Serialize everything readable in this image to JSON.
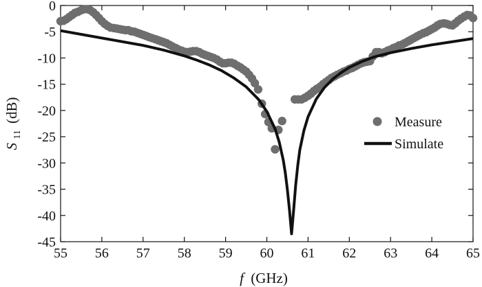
{
  "chart_data": {
    "type": "line",
    "title": "",
    "xlabel": {
      "symbol": "f",
      "unit": "(GHz)"
    },
    "ylabel": {
      "symbol": "S",
      "subscript": "11",
      "unit": "(dB)"
    },
    "xlim": [
      55,
      65
    ],
    "ylim": [
      -45,
      0
    ],
    "grid": false,
    "legend_position": "right",
    "x_ticks": [
      "55",
      "56",
      "57",
      "58",
      "59",
      "60",
      "61",
      "62",
      "63",
      "64",
      "65"
    ],
    "y_ticks": [
      "0",
      "-5",
      "-10",
      "-15",
      "-20",
      "-25",
      "-30",
      "-35",
      "-40",
      "-45"
    ],
    "series": [
      {
        "name": "Measure",
        "style": "markers",
        "color": "#6e6e6e",
        "points": [
          [
            55.0,
            -3.0
          ],
          [
            55.07,
            -2.9
          ],
          [
            55.14,
            -2.6
          ],
          [
            55.21,
            -2.2
          ],
          [
            55.28,
            -1.8
          ],
          [
            55.35,
            -1.4
          ],
          [
            55.42,
            -1.2
          ],
          [
            55.5,
            -0.9
          ],
          [
            55.58,
            -0.7
          ],
          [
            55.65,
            -0.7
          ],
          [
            55.72,
            -0.9
          ],
          [
            55.79,
            -1.3
          ],
          [
            55.86,
            -1.8
          ],
          [
            55.93,
            -2.4
          ],
          [
            56.0,
            -3.0
          ],
          [
            56.07,
            -3.5
          ],
          [
            56.14,
            -3.9
          ],
          [
            56.21,
            -4.2
          ],
          [
            56.29,
            -4.3
          ],
          [
            56.36,
            -4.4
          ],
          [
            56.43,
            -4.5
          ],
          [
            56.5,
            -4.6
          ],
          [
            56.57,
            -4.7
          ],
          [
            56.64,
            -4.7
          ],
          [
            56.71,
            -4.9
          ],
          [
            56.79,
            -5.0
          ],
          [
            56.86,
            -5.2
          ],
          [
            56.93,
            -5.4
          ],
          [
            57.0,
            -5.6
          ],
          [
            57.07,
            -5.8
          ],
          [
            57.14,
            -6.0
          ],
          [
            57.21,
            -6.2
          ],
          [
            57.29,
            -6.4
          ],
          [
            57.36,
            -6.6
          ],
          [
            57.43,
            -6.8
          ],
          [
            57.5,
            -7.0
          ],
          [
            57.57,
            -7.2
          ],
          [
            57.64,
            -7.5
          ],
          [
            57.71,
            -7.8
          ],
          [
            57.79,
            -8.1
          ],
          [
            57.86,
            -8.4
          ],
          [
            57.93,
            -8.6
          ],
          [
            58.0,
            -8.8
          ],
          [
            58.07,
            -8.9
          ],
          [
            58.14,
            -8.8
          ],
          [
            58.21,
            -8.7
          ],
          [
            58.29,
            -8.7
          ],
          [
            58.36,
            -8.9
          ],
          [
            58.43,
            -9.2
          ],
          [
            58.5,
            -9.4
          ],
          [
            58.57,
            -9.6
          ],
          [
            58.64,
            -9.8
          ],
          [
            58.71,
            -10.0
          ],
          [
            58.79,
            -10.3
          ],
          [
            58.86,
            -10.7
          ],
          [
            58.93,
            -11.0
          ],
          [
            59.0,
            -11.0
          ],
          [
            59.07,
            -10.9
          ],
          [
            59.14,
            -10.9
          ],
          [
            59.21,
            -11.1
          ],
          [
            59.29,
            -11.5
          ],
          [
            59.36,
            -11.8
          ],
          [
            59.43,
            -12.2
          ],
          [
            59.5,
            -12.6
          ],
          [
            59.57,
            -13.2
          ],
          [
            59.64,
            -13.9
          ],
          [
            59.71,
            -14.8
          ],
          [
            59.79,
            -16.0
          ],
          [
            59.88,
            -18.7
          ],
          [
            59.96,
            -20.7
          ],
          [
            60.04,
            -22.2
          ],
          [
            60.12,
            -23.4
          ],
          [
            60.2,
            -27.4
          ],
          [
            60.28,
            -23.7
          ],
          [
            60.37,
            -22.0
          ],
          [
            60.68,
            -17.9
          ],
          [
            60.76,
            -17.9
          ],
          [
            60.84,
            -17.9
          ],
          [
            60.92,
            -17.6
          ],
          [
            61.0,
            -17.2
          ],
          [
            61.07,
            -16.8
          ],
          [
            61.14,
            -16.3
          ],
          [
            61.21,
            -15.9
          ],
          [
            61.29,
            -15.5
          ],
          [
            61.36,
            -15.0
          ],
          [
            61.43,
            -14.6
          ],
          [
            61.5,
            -14.2
          ],
          [
            61.57,
            -13.8
          ],
          [
            61.64,
            -13.5
          ],
          [
            61.71,
            -13.2
          ],
          [
            61.79,
            -12.9
          ],
          [
            61.86,
            -12.6
          ],
          [
            61.93,
            -12.4
          ],
          [
            62.0,
            -12.1
          ],
          [
            62.07,
            -11.9
          ],
          [
            62.14,
            -11.6
          ],
          [
            62.21,
            -11.3
          ],
          [
            62.29,
            -11.0
          ],
          [
            62.36,
            -10.8
          ],
          [
            62.43,
            -10.7
          ],
          [
            62.5,
            -10.6
          ],
          [
            62.57,
            -9.7
          ],
          [
            62.65,
            -8.9
          ],
          [
            62.72,
            -8.9
          ],
          [
            62.79,
            -9.1
          ],
          [
            62.86,
            -8.9
          ],
          [
            62.93,
            -8.6
          ],
          [
            63.0,
            -8.4
          ],
          [
            63.07,
            -8.1
          ],
          [
            63.14,
            -7.9
          ],
          [
            63.21,
            -7.6
          ],
          [
            63.29,
            -7.4
          ],
          [
            63.36,
            -7.1
          ],
          [
            63.43,
            -6.8
          ],
          [
            63.5,
            -6.5
          ],
          [
            63.57,
            -6.2
          ],
          [
            63.64,
            -5.9
          ],
          [
            63.71,
            -5.6
          ],
          [
            63.79,
            -5.3
          ],
          [
            63.86,
            -5.1
          ],
          [
            63.93,
            -4.8
          ],
          [
            64.0,
            -4.5
          ],
          [
            64.07,
            -4.2
          ],
          [
            64.14,
            -3.8
          ],
          [
            64.21,
            -3.5
          ],
          [
            64.29,
            -3.4
          ],
          [
            64.36,
            -3.5
          ],
          [
            64.43,
            -3.7
          ],
          [
            64.5,
            -3.8
          ],
          [
            64.57,
            -3.4
          ],
          [
            64.64,
            -2.9
          ],
          [
            64.71,
            -2.5
          ],
          [
            64.79,
            -2.1
          ],
          [
            64.86,
            -1.8
          ],
          [
            64.93,
            -1.9
          ],
          [
            65.0,
            -2.4
          ]
        ]
      },
      {
        "name": "Simulate",
        "style": "line",
        "color": "#111111",
        "f0": 60.6,
        "min_db": -43.5,
        "points": [
          [
            55.0,
            -4.8
          ],
          [
            55.5,
            -5.5
          ],
          [
            56.0,
            -6.2
          ],
          [
            56.5,
            -6.9
          ],
          [
            57.0,
            -7.6
          ],
          [
            57.5,
            -8.5
          ],
          [
            58.0,
            -9.6
          ],
          [
            58.3,
            -10.4
          ],
          [
            58.6,
            -11.3
          ],
          [
            58.9,
            -12.4
          ],
          [
            59.2,
            -13.8
          ],
          [
            59.5,
            -15.5
          ],
          [
            59.8,
            -17.9
          ],
          [
            60.0,
            -20.2
          ],
          [
            60.2,
            -23.5
          ],
          [
            60.3,
            -26.0
          ],
          [
            60.4,
            -29.5
          ],
          [
            60.45,
            -32.0
          ],
          [
            60.5,
            -35.2
          ],
          [
            60.55,
            -39.0
          ],
          [
            60.6,
            -43.5
          ],
          [
            60.65,
            -39.0
          ],
          [
            60.7,
            -34.2
          ],
          [
            60.75,
            -30.5
          ],
          [
            60.8,
            -27.5
          ],
          [
            60.9,
            -23.8
          ],
          [
            61.0,
            -21.2
          ],
          [
            61.2,
            -17.8
          ],
          [
            61.4,
            -15.6
          ],
          [
            61.6,
            -14.0
          ],
          [
            61.8,
            -12.8
          ],
          [
            62.0,
            -11.8
          ],
          [
            62.3,
            -10.7
          ],
          [
            62.6,
            -9.8
          ],
          [
            63.0,
            -9.0
          ],
          [
            63.5,
            -8.2
          ],
          [
            64.0,
            -7.5
          ],
          [
            64.5,
            -6.9
          ],
          [
            65.0,
            -6.3
          ]
        ]
      }
    ]
  }
}
